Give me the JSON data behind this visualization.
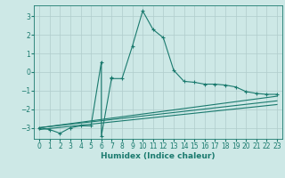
{
  "xlabel": "Humidex (Indice chaleur)",
  "ylabel": "",
  "background_color": "#cde8e6",
  "line_color": "#1a7a6e",
  "grid_color": "#b0cccb",
  "xlim": [
    -0.5,
    23.5
  ],
  "ylim": [
    -3.6,
    3.6
  ],
  "yticks": [
    -3,
    -2,
    -1,
    0,
    1,
    2,
    3
  ],
  "xticks": [
    0,
    1,
    2,
    3,
    4,
    5,
    6,
    7,
    8,
    9,
    10,
    11,
    12,
    13,
    14,
    15,
    16,
    17,
    18,
    19,
    20,
    21,
    22,
    23
  ],
  "series1_x": [
    0,
    1,
    2,
    3,
    4,
    5,
    6,
    6,
    7,
    7,
    8,
    9,
    10,
    11,
    12,
    13,
    14,
    15,
    16,
    17,
    18,
    19,
    20,
    21,
    22,
    23
  ],
  "series1_y": [
    -3.0,
    -3.1,
    -3.3,
    -3.0,
    -2.9,
    -2.9,
    0.55,
    -3.45,
    -0.3,
    -0.35,
    -0.35,
    1.4,
    3.3,
    2.3,
    1.85,
    0.1,
    -0.5,
    -0.55,
    -0.65,
    -0.65,
    -0.7,
    -0.8,
    -1.05,
    -1.15,
    -1.2,
    -1.2
  ],
  "series2_x": [
    0,
    23
  ],
  "series2_y": [
    -3.0,
    -1.3
  ],
  "series3_x": [
    0,
    23
  ],
  "series3_y": [
    -3.0,
    -1.55
  ],
  "series4_x": [
    0,
    23
  ],
  "series4_y": [
    -3.1,
    -1.75
  ]
}
